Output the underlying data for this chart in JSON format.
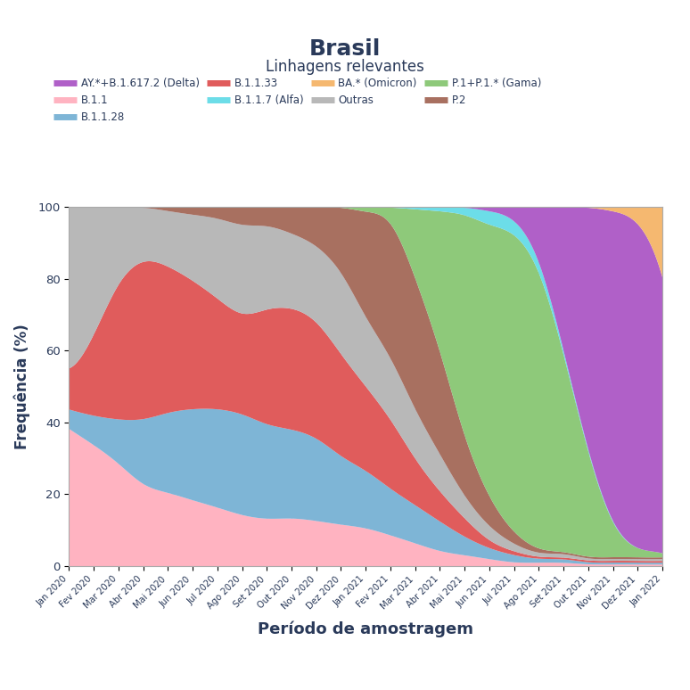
{
  "title": "Brasil",
  "subtitle": "Linhagens relevantes",
  "xlabel": "Período de amostragem",
  "ylabel": "Frequência (%)",
  "tick_labels": [
    "Jan 2020",
    "Fev 2020",
    "Mar 2020",
    "Abr 2020",
    "Mai 2020",
    "Jun 2020",
    "Jul 2020",
    "Ago 2020",
    "Set 2020",
    "Out 2020",
    "Nov 2020",
    "Dez 2020",
    "Jan 2021",
    "Fev 2021",
    "Mar 2021",
    "Abr 2021",
    "Mai 2021",
    "Jun 2021",
    "Jul 2021",
    "Ago 2021",
    "Set 2021",
    "Out 2021",
    "Nov 2021",
    "Dez 2021",
    "Jan 2022"
  ],
  "colors": {
    "B11": "#ffb3c1",
    "B1128": "#7eb5d6",
    "B1133": "#e05c5c",
    "outras": "#b8b8b8",
    "P2": "#a87060",
    "gama": "#8ec97a",
    "alfa": "#6cdde8",
    "delta": "#b060c8",
    "omicron": "#f5b870"
  },
  "legend_items": [
    [
      "AY.*+B.1.617.2 (Delta)",
      "#b060c8"
    ],
    [
      "B.1.1",
      "#ffb3c1"
    ],
    [
      "B.1.1.28",
      "#7eb5d6"
    ],
    [
      "B.1.1.33",
      "#e05c5c"
    ],
    [
      "B.1.1.7 (Alfa)",
      "#6cdde8"
    ],
    [
      "BA.* (Omicron)",
      "#f5b870"
    ],
    [
      "Outras",
      "#b8b8b8"
    ],
    [
      "P.1+P.1.* (Gama)",
      "#8ec97a"
    ],
    [
      "P.2",
      "#a87060"
    ]
  ],
  "background_color": "#eeeeff",
  "grid_color": "#ccccee",
  "title_color": "#2a3a5a",
  "B11": [
    38,
    33,
    28,
    22,
    20,
    18,
    16,
    14,
    13,
    13,
    12,
    11,
    10,
    8,
    6,
    4,
    3,
    2,
    1,
    1,
    1,
    0.5,
    0.5,
    0.5,
    0.5
  ],
  "B1128": [
    5,
    8,
    12,
    18,
    22,
    25,
    27,
    28,
    26,
    24,
    22,
    18,
    15,
    12,
    10,
    8,
    5,
    3,
    2,
    1,
    1,
    0.5,
    0.5,
    0.5,
    0.5
  ],
  "B1133": [
    10,
    22,
    38,
    44,
    40,
    35,
    30,
    27,
    32,
    33,
    31,
    27,
    22,
    18,
    12,
    8,
    5,
    2,
    1,
    0.5,
    0.5,
    0.5,
    0.5,
    0.5,
    0.5
  ],
  "outras": [
    45,
    35,
    20,
    14,
    15,
    18,
    22,
    25,
    23,
    20,
    20,
    22,
    18,
    16,
    13,
    10,
    6,
    4,
    2,
    1,
    1,
    0.5,
    0.5,
    0.5,
    0.5
  ],
  "P2": [
    0,
    0,
    0,
    0,
    1,
    2,
    3,
    5,
    5,
    7,
    10,
    17,
    28,
    36,
    35,
    28,
    16,
    8,
    3,
    1,
    0.5,
    0.5,
    0.5,
    0.5,
    0.5
  ],
  "gama": [
    0,
    0,
    0,
    0,
    0,
    0,
    0,
    0,
    0,
    0,
    0,
    0,
    1,
    3,
    18,
    38,
    62,
    78,
    84,
    78,
    55,
    28,
    8,
    2,
    1
  ],
  "alfa": [
    0,
    0,
    0,
    0,
    0,
    0,
    0,
    0,
    0,
    0,
    0,
    0,
    0,
    0,
    0.5,
    1,
    2,
    4,
    4,
    3,
    1,
    0.5,
    0.3,
    0,
    0
  ],
  "delta": [
    0,
    0,
    0,
    0,
    0,
    0,
    0,
    0,
    0,
    0,
    0,
    0,
    0,
    0,
    0,
    0,
    0,
    1,
    3,
    14,
    40,
    68,
    87,
    93,
    75
  ],
  "omicron": [
    0,
    0,
    0,
    0,
    0,
    0,
    0,
    0,
    0,
    0,
    0,
    0,
    0,
    0,
    0,
    0,
    0,
    0,
    0,
    0,
    0,
    0,
    1,
    3,
    22
  ]
}
